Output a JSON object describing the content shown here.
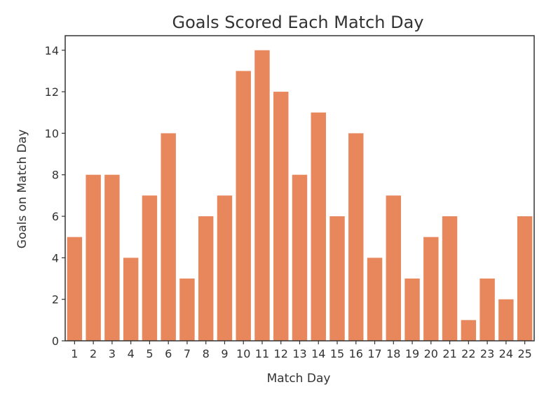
{
  "chart_data": {
    "type": "bar",
    "title": "Goals Scored Each Match Day",
    "xlabel": "Match Day",
    "ylabel": "Goals on Match Day",
    "categories": [
      "1",
      "2",
      "3",
      "4",
      "5",
      "6",
      "7",
      "8",
      "9",
      "10",
      "11",
      "12",
      "13",
      "14",
      "15",
      "16",
      "17",
      "18",
      "19",
      "20",
      "21",
      "22",
      "23",
      "24",
      "25"
    ],
    "values": [
      5,
      8,
      8,
      4,
      7,
      10,
      3,
      6,
      7,
      13,
      14,
      12,
      8,
      11,
      6,
      10,
      4,
      7,
      3,
      5,
      6,
      1,
      3,
      2,
      6
    ],
    "ylim": [
      0,
      14.7
    ],
    "yticks": [
      0,
      2,
      4,
      6,
      8,
      10,
      12,
      14
    ],
    "grid": false,
    "legend": "none",
    "bar_color": "#e8875c",
    "axis_color": "#333333"
  }
}
